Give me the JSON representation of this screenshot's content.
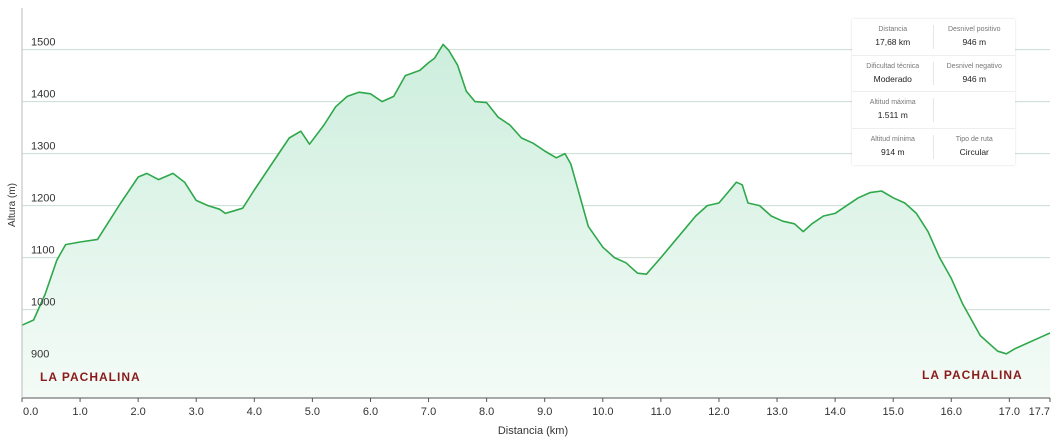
{
  "chart_data": {
    "type": "area",
    "xlabel": "Distancia  (km)",
    "ylabel": "Altura (m)",
    "xlim": [
      0,
      17.7
    ],
    "ylim": [
      830,
      1580
    ],
    "xticks": [
      "0.0",
      "1.0",
      "2.0",
      "3.0",
      "4.0",
      "5.0",
      "6.0",
      "7.0",
      "8.0",
      "9.0",
      "10.0",
      "11.0",
      "12.0",
      "13.0",
      "14.0",
      "15.0",
      "16.0",
      "17.0",
      "17.7"
    ],
    "yticks": [
      "900",
      "1000",
      "1100",
      "1200",
      "1300",
      "1400",
      "1500"
    ],
    "grid": true,
    "line_color": "#2ea84a",
    "fill_top_color": "#cdeedd",
    "fill_bottom_color": "#f4fbf7",
    "series": [
      {
        "x": [
          0,
          0.2,
          0.4,
          0.6,
          0.75,
          1.0,
          1.3,
          1.5,
          1.7,
          2.0,
          2.15,
          2.35,
          2.6,
          2.8,
          3.0,
          3.2,
          3.4,
          3.5,
          3.65,
          3.8,
          4.0,
          4.3,
          4.6,
          4.8,
          4.95,
          5.2,
          5.4,
          5.6,
          5.8,
          6.0,
          6.2,
          6.4,
          6.6,
          6.85,
          7.0,
          7.1,
          7.25,
          7.35,
          7.5,
          7.65,
          7.8,
          8.0,
          8.2,
          8.4,
          8.6,
          8.8,
          9.0,
          9.2,
          9.35,
          9.45,
          9.55,
          9.75,
          10.0,
          10.2,
          10.4,
          10.6,
          10.75,
          11.0,
          11.3,
          11.6,
          11.8,
          12.0,
          12.15,
          12.3,
          12.4,
          12.5,
          12.7,
          12.9,
          13.1,
          13.3,
          13.45,
          13.6,
          13.8,
          14.0,
          14.2,
          14.4,
          14.6,
          14.8,
          15.0,
          15.2,
          15.4,
          15.6,
          15.8,
          16.0,
          16.2,
          16.5,
          16.8,
          16.95,
          17.1,
          17.3,
          17.5,
          17.7
        ],
        "y": [
          970,
          980,
          1030,
          1095,
          1125,
          1130,
          1135,
          1170,
          1205,
          1255,
          1262,
          1250,
          1262,
          1245,
          1210,
          1200,
          1193,
          1185,
          1190,
          1195,
          1230,
          1280,
          1330,
          1343,
          1318,
          1355,
          1390,
          1410,
          1418,
          1415,
          1400,
          1410,
          1450,
          1460,
          1475,
          1483,
          1510,
          1498,
          1470,
          1420,
          1400,
          1398,
          1370,
          1355,
          1330,
          1320,
          1305,
          1292,
          1300,
          1280,
          1240,
          1160,
          1120,
          1100,
          1090,
          1070,
          1068,
          1100,
          1140,
          1180,
          1200,
          1205,
          1225,
          1245,
          1240,
          1205,
          1200,
          1180,
          1170,
          1165,
          1150,
          1165,
          1180,
          1185,
          1200,
          1215,
          1225,
          1228,
          1215,
          1205,
          1185,
          1150,
          1100,
          1060,
          1010,
          950,
          920,
          915,
          925,
          935,
          945,
          955
        ]
      }
    ]
  },
  "stats": [
    {
      "label": "Distancia",
      "value": "17,68 km"
    },
    {
      "label": "Desnivel positivo",
      "value": "946 m"
    },
    {
      "label": "Dificultad técnica",
      "value": "Moderado"
    },
    {
      "label": "Desnivel negativo",
      "value": "946 m"
    },
    {
      "label": "Altitud máxima",
      "value": "1.511 m"
    },
    {
      "label": "",
      "value": ""
    },
    {
      "label": "Altitud mínima",
      "value": "914 m"
    },
    {
      "label": "Tipo de ruta",
      "value": "Circular"
    }
  ],
  "places": {
    "start": "LA PACHALINA",
    "end": "LA PACHALINA"
  }
}
